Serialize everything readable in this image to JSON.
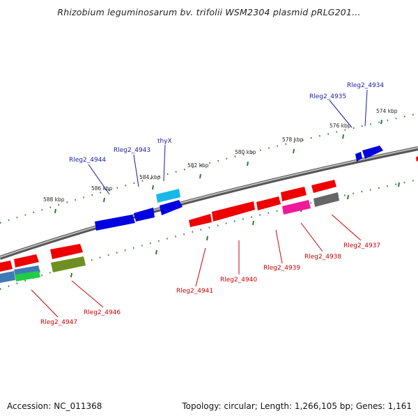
{
  "title": "Rhizobium leguminosarum bv. trifolii WSM2304 plasmid pRLG201...",
  "footer": {
    "accession": "Accession: NC_011368",
    "summary": "Topology: circular; Length: 1,266,105 bp; Genes: 1,161"
  },
  "colors": {
    "outer_label": "#1a1aa8",
    "inner_label": "#cc0000",
    "tick": "#2a7a2a",
    "backbone": "#777777"
  },
  "kbp_labels": [
    "574 kbp",
    "576 kbp",
    "578 kbp",
    "580 kbp",
    "582 kbp",
    "584 kbp",
    "586 kbp",
    "588 kbp"
  ],
  "outer_gene_labels": [
    "Rleg2_4934",
    "Rleg2_4935",
    "thyX",
    "Rleg2_4943",
    "Rleg2_4944"
  ],
  "inner_gene_labels": [
    "Rleg2_4937",
    "Rleg2_4938",
    "Rleg2_4939",
    "Rleg2_4940",
    "Rleg2_4941",
    "Rleg2_4946",
    "Rleg2_4947"
  ]
}
